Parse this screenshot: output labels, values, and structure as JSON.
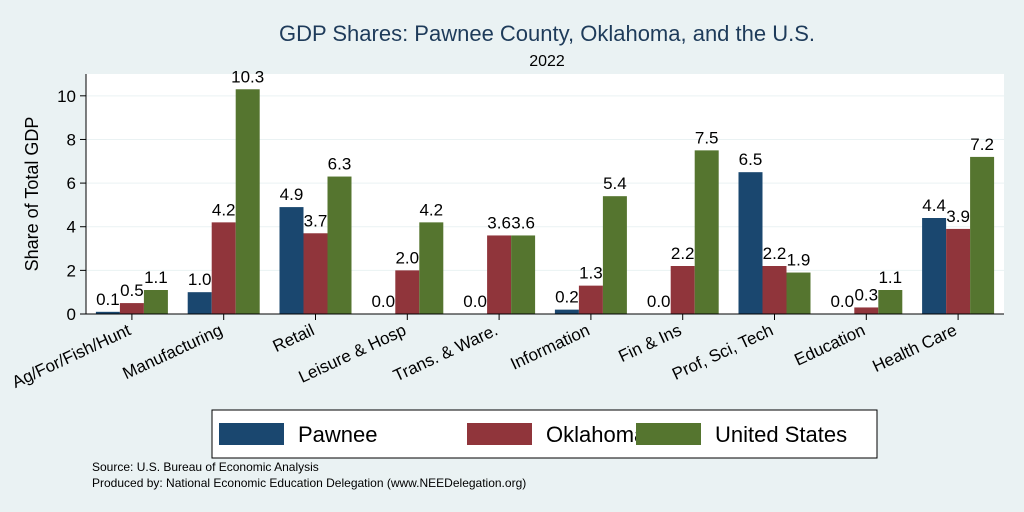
{
  "chart_data": {
    "type": "bar",
    "title": "GDP Shares: Pawnee County, Oklahoma, and the U.S.",
    "subtitle": "2022",
    "ylabel": "Share of Total GDP",
    "xlabel": "",
    "ylim": [
      0,
      11
    ],
    "yticks": [
      0,
      2,
      4,
      6,
      8,
      10
    ],
    "grid": true,
    "legend_position": "bottom",
    "categories": [
      "Ag/For/Fish/Hunt",
      "Manufacturing",
      "Retail",
      "Leisure & Hosp",
      "Trans. & Ware.",
      "Information",
      "Fin & Ins",
      "Prof, Sci, Tech",
      "Education",
      "Health Care"
    ],
    "series": [
      {
        "name": "Pawnee",
        "color": "#1a476f",
        "values": [
          0.1,
          1.0,
          4.9,
          0.0,
          0.0,
          0.2,
          0.0,
          6.5,
          0.0,
          4.4
        ]
      },
      {
        "name": "Oklahoma",
        "color": "#90353b",
        "values": [
          0.5,
          4.2,
          3.7,
          2.0,
          3.6,
          1.3,
          2.2,
          2.2,
          0.3,
          3.9
        ]
      },
      {
        "name": "United States",
        "color": "#55752f",
        "values": [
          1.1,
          10.3,
          6.3,
          4.2,
          3.6,
          5.4,
          7.5,
          1.9,
          1.1,
          7.2
        ]
      }
    ]
  },
  "footer": {
    "source": "Source: U.S. Bureau of Economic Analysis",
    "produced_by": "Produced by: National Economic Education Delegation (www.NEEDelegation.org)"
  }
}
